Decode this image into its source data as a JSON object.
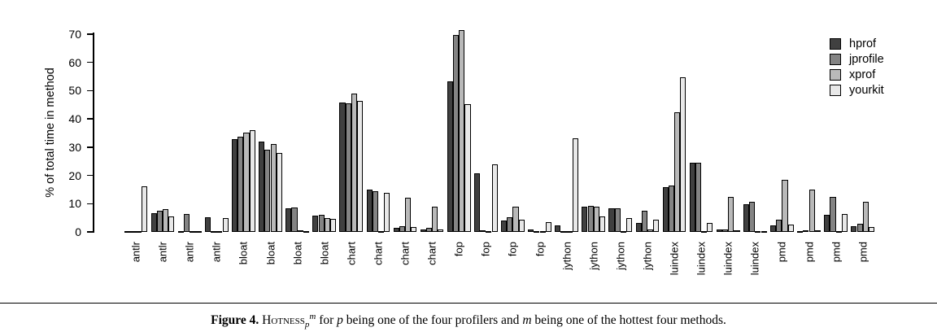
{
  "figure": {
    "caption": {
      "figure_label": "Figure 4.",
      "metric": "Hotness",
      "metric_sub": "p",
      "metric_sup": "m",
      "text_after_metric": " for ",
      "var_p": "p",
      "text_mid": " being one of the four profilers and ",
      "var_m": "m",
      "text_end": " being one of the hottest four methods."
    }
  },
  "chart_data": {
    "type": "bar",
    "title": "",
    "xlabel": "",
    "ylabel": "% of total time in method",
    "ylim": [
      0,
      70
    ],
    "yticks": [
      0,
      10,
      20,
      30,
      40,
      50,
      60,
      70
    ],
    "grid": false,
    "legend_position": "top-right",
    "legend": [
      "hprof",
      "jprofile",
      "xprof",
      "yourkit"
    ],
    "series_colors": {
      "hprof": "#404040",
      "jprofile": "#848484",
      "xprof": "#b9b9b9",
      "yourkit": "#e8e8e8"
    },
    "bar_border_color": "#000000",
    "categories": [
      "antlr",
      "antlr",
      "antlr",
      "antlr",
      "bloat",
      "bloat",
      "bloat",
      "bloat",
      "chart",
      "chart",
      "chart",
      "chart",
      "fop",
      "fop",
      "fop",
      "fop",
      "jython",
      "jython",
      "jython",
      "jython",
      "luindex",
      "luindex",
      "luindex",
      "luindex",
      "pmd",
      "pmd",
      "pmd",
      "pmd"
    ],
    "series": [
      {
        "name": "hprof",
        "values": [
          0.2,
          6.6,
          0.2,
          5.2,
          32.8,
          32.0,
          8.3,
          5.7,
          45.7,
          14.9,
          1.5,
          1.0,
          53.2,
          20.8,
          4.0,
          0.8,
          2.3,
          9.0,
          8.3,
          3.1,
          15.7,
          24.4,
          0.8,
          9.9,
          2.4,
          0.4,
          6.1,
          1.9
        ]
      },
      {
        "name": "jprofile",
        "values": [
          0.2,
          7.6,
          6.2,
          0.4,
          33.6,
          29.2,
          8.6,
          6.1,
          45.6,
          14.3,
          1.9,
          1.3,
          69.8,
          0.5,
          5.2,
          0.3,
          0.4,
          9.3,
          8.3,
          7.4,
          16.3,
          24.6,
          1.0,
          10.8,
          4.3,
          0.7,
          12.5,
          2.9
        ]
      },
      {
        "name": "xprof",
        "values": [
          0.2,
          8.0,
          0.2,
          0.2,
          35.2,
          31.0,
          0.5,
          4.8,
          49.0,
          0.2,
          12.0,
          8.8,
          71.5,
          0.3,
          8.9,
          0.3,
          0.2,
          8.8,
          0.2,
          1.0,
          42.4,
          0.3,
          12.5,
          0.4,
          18.5,
          15.0,
          0.2,
          10.6
        ]
      },
      {
        "name": "yourkit",
        "values": [
          16.0,
          5.6,
          0.2,
          4.8,
          35.9,
          28.0,
          0.4,
          4.6,
          46.5,
          13.9,
          1.6,
          1.0,
          45.1,
          23.8,
          4.2,
          3.6,
          33.2,
          5.5,
          5.0,
          4.2,
          54.6,
          3.2,
          0.7,
          0.3,
          2.6,
          0.5,
          6.3,
          1.7
        ]
      }
    ]
  }
}
